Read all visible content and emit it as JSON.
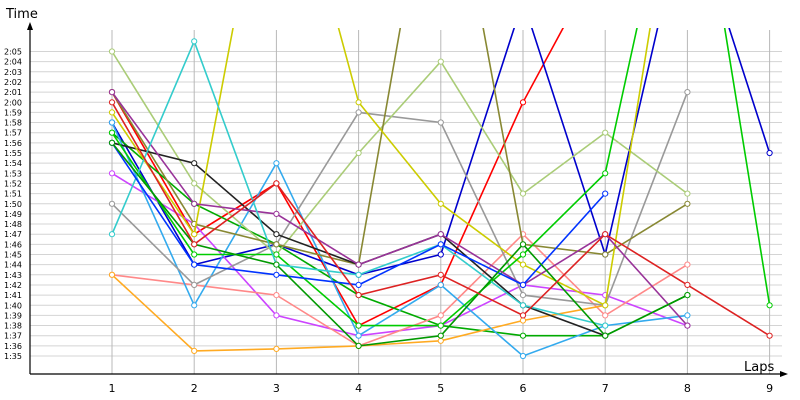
{
  "chart_data": {
    "type": "line",
    "title": "",
    "xlabel": "Laps",
    "ylabel": "Time",
    "x": [
      1,
      2,
      3,
      4,
      5,
      6,
      7,
      8,
      9
    ],
    "x_tick_labels": [
      "1",
      "2",
      "3",
      "4",
      "5",
      "6",
      "7",
      "8",
      "9"
    ],
    "y_tick_labels": [
      "1:35",
      "1:36",
      "1:37",
      "1:38",
      "1:39",
      "1:40",
      "1:41",
      "1:42",
      "1:43",
      "1:44",
      "1:45",
      "1:46",
      "1:47",
      "1:48",
      "1:49",
      "1:50",
      "1:51",
      "1:52",
      "1:53",
      "1:54",
      "1:55",
      "1:56",
      "1:57",
      "1:58",
      "1:59",
      "2:00",
      "2:01",
      "2:02",
      "2:03",
      "2:04",
      "2:05"
    ],
    "ylim_seconds": [
      94,
      128
    ],
    "grid": true,
    "legend": "none",
    "series": [
      {
        "color": "#ff0000",
        "values": [
          121,
          107,
          112,
          98,
          102,
          120,
          135,
          null,
          null
        ]
      },
      {
        "color": "#0000cc",
        "values": [
          118,
          104,
          106,
          103,
          105,
          130,
          105,
          140,
          115
        ]
      },
      {
        "color": "#00aa00",
        "values": [
          117,
          110,
          106,
          101,
          98,
          97,
          97,
          101,
          null
        ]
      },
      {
        "color": "#cc44ff",
        "values": [
          113,
          108,
          99,
          97,
          98,
          102,
          101,
          98,
          null
        ]
      },
      {
        "color": "#ff8888",
        "values": [
          103,
          102,
          101,
          96,
          99,
          107,
          99,
          104,
          null
        ]
      },
      {
        "color": "#ffaa22",
        "values": [
          103,
          95.5,
          95.7,
          96,
          96.5,
          98.5,
          100,
          null,
          null
        ]
      },
      {
        "color": "#33aaee",
        "values": [
          118,
          100,
          114,
          97,
          102,
          95,
          98,
          99,
          null
        ]
      },
      {
        "color": "#999999",
        "values": [
          110,
          102,
          106,
          119,
          118,
          101,
          100,
          121,
          null
        ]
      },
      {
        "color": "#aacc77",
        "values": [
          125,
          112,
          105,
          115,
          124,
          111,
          117,
          111,
          null
        ]
      },
      {
        "color": "#888833",
        "values": [
          121,
          108,
          106,
          104,
          150,
          106,
          105,
          110,
          null
        ]
      },
      {
        "color": "#222222",
        "values": [
          116,
          114,
          107,
          104,
          107,
          100,
          97,
          null,
          null
        ]
      },
      {
        "color": "#cccc00",
        "values": [
          119,
          107,
          150,
          120,
          110,
          104,
          100,
          150,
          null
        ]
      },
      {
        "color": "#00cc00",
        "values": [
          117,
          105,
          105,
          98,
          98,
          105,
          113,
          150,
          100
        ]
      },
      {
        "color": "#993399",
        "values": [
          121,
          110,
          109,
          104,
          107,
          102,
          107,
          98,
          null
        ]
      },
      {
        "color": "#33cccc",
        "values": [
          107,
          126,
          104,
          103,
          106,
          100,
          98,
          null,
          null
        ]
      },
      {
        "color": "#0033ff",
        "values": [
          116,
          104,
          103,
          102,
          106,
          102,
          111,
          null,
          null
        ]
      },
      {
        "color": "#009900",
        "values": [
          116,
          106,
          104,
          96,
          97,
          106,
          97,
          101,
          null
        ]
      },
      {
        "color": "#dd2222",
        "values": [
          120,
          106,
          112,
          101,
          103,
          99,
          107,
          102,
          97
        ]
      }
    ]
  }
}
